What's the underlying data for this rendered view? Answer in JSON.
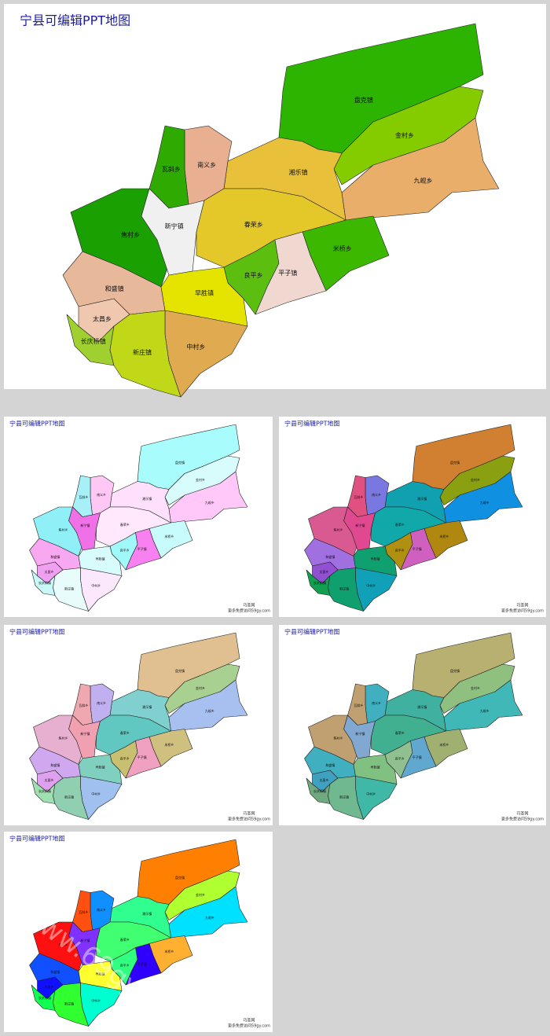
{
  "title": "宁县可编辑PPT地图",
  "regions": [
    "盘克镇",
    "金村乡",
    "九岘乡",
    "湘乐镇",
    "南义乡",
    "瓦斜乡",
    "焦村乡",
    "新宁镇",
    "春荣乡",
    "米桥乡",
    "和盛镇",
    "良平乡",
    "平子镇",
    "早胜镇",
    "太昌乡",
    "中村乡",
    "长庆桥镇",
    "新庄镇"
  ],
  "maps": [
    {
      "colors": [
        "#2db400",
        "#84cc00",
        "#e8ae6a",
        "#e8c03a",
        "#e8b090",
        "#2eaa00",
        "#1aa000",
        "#f0f0f0",
        "#e4c82a",
        "#3cb800",
        "#e8b89a",
        "#5cbf10",
        "#f0d8d0",
        "#e4e400",
        "#f0c8b0",
        "#e0aa50",
        "#a0d030",
        "#c0d818"
      ]
    },
    {
      "colors": [
        "#a8fcfc",
        "#d8fcfc",
        "#ffc8f8",
        "#ffe0fc",
        "#ffc8f4",
        "#a8f0f8",
        "#90f0f8",
        "#f070e8",
        "#ffe8fc",
        "#c8fcfc",
        "#f8a8f0",
        "#a0f8f8",
        "#f880f0",
        "#d8fcfc",
        "#f0a0f0",
        "#fce8fc",
        "#c8f8f8",
        "#e8fcfc"
      ]
    },
    {
      "colors": [
        "#d08030",
        "#8aa010",
        "#1090e0",
        "#10a0b0",
        "#7878e0",
        "#e05080",
        "#d85a90",
        "#e04890",
        "#10a8a8",
        "#b08810",
        "#a070e0",
        "#b09010",
        "#d060c0",
        "#10a070",
        "#9050d0",
        "#10a0b8",
        "#10a050",
        "#10a070"
      ]
    },
    {
      "colors": [
        "#e0c090",
        "#a8d090",
        "#a8c0f0",
        "#80d0d0",
        "#c0b0f0",
        "#f0a8b0",
        "#e8b0d0",
        "#f0a0b0",
        "#60c8c0",
        "#d0c080",
        "#d0a8f0",
        "#c8c070",
        "#f0a0c0",
        "#80d0c0",
        "#e0a0f0",
        "#a0c0f0",
        "#a0e0b0",
        "#90d0b0"
      ]
    },
    {
      "colors": [
        "#b8b070",
        "#90c080",
        "#40b8b8",
        "#40b0a0",
        "#40b0c0",
        "#c0a070",
        "#c0a070",
        "#80a8d0",
        "#40b090",
        "#a0b070",
        "#40b0c0",
        "#90c090",
        "#60a8d0",
        "#80c080",
        "#40a0c0",
        "#40b8a8",
        "#70a880",
        "#70b890"
      ]
    },
    {
      "colors": [
        "#ff8000",
        "#b0ff30",
        "#00e0ff",
        "#30ff90",
        "#1090ff",
        "#ff5010",
        "#ff1010",
        "#8030ff",
        "#40ff70",
        "#ffb030",
        "#1050ff",
        "#30ff80",
        "#3000ff",
        "#ffff30",
        "#1010ff",
        "#00ffd0",
        "#10ff50",
        "#30ff30"
      ]
    }
  ],
  "footer": {
    "site": "巧圣网",
    "link": "更多免费访问59gy.com"
  },
  "watermark": "www.69gy.com"
}
